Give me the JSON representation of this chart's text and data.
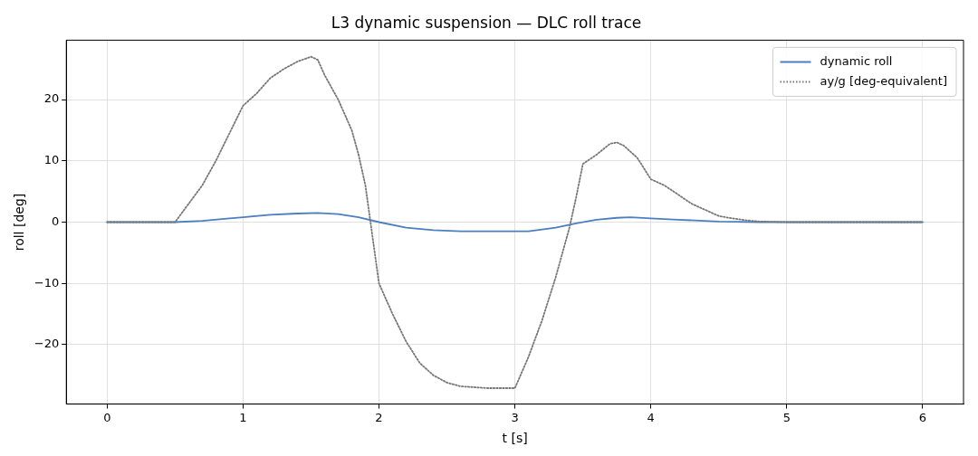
{
  "chart_data": {
    "type": "line",
    "title": "L3 dynamic suspension — DLC roll trace",
    "xlabel": "t [s]",
    "ylabel": "roll [deg]",
    "xlim": [
      -0.3,
      6.3
    ],
    "xticks": [
      0,
      1,
      2,
      3,
      4,
      5,
      6
    ],
    "ylim": [
      -29.7,
      29.7
    ],
    "yticks": [
      -20,
      -10,
      0,
      10,
      20
    ],
    "grid": true,
    "legend": "top right",
    "marker": "none",
    "series": [
      {
        "name": "dynamic roll",
        "color": "#4c7fc0",
        "line_style": "solid",
        "x": [
          0,
          0.5,
          0.7,
          0.9,
          1.0,
          1.2,
          1.4,
          1.55,
          1.7,
          1.85,
          2.0,
          2.2,
          2.4,
          2.6,
          2.8,
          3.0,
          3.1,
          3.3,
          3.45,
          3.6,
          3.75,
          3.85,
          4.0,
          4.2,
          4.5,
          4.8,
          6
        ],
        "values": [
          0,
          0,
          0.2,
          0.6,
          0.8,
          1.2,
          1.4,
          1.5,
          1.3,
          0.8,
          0,
          -0.9,
          -1.3,
          -1.5,
          -1.5,
          -1.5,
          -1.5,
          -0.9,
          -0.2,
          0.4,
          0.7,
          0.8,
          0.6,
          0.4,
          0.1,
          0,
          0
        ]
      },
      {
        "name": "ay/g [deg-equivalent]",
        "color": "#777777",
        "line_style": "dotted",
        "x": [
          0,
          0.5,
          0.6,
          0.7,
          0.8,
          0.9,
          1.0,
          1.1,
          1.2,
          1.3,
          1.4,
          1.5,
          1.55,
          1.6,
          1.7,
          1.8,
          1.85,
          1.9,
          1.95,
          2.0,
          2.1,
          2.2,
          2.3,
          2.4,
          2.5,
          2.6,
          2.8,
          3.0,
          3.1,
          3.2,
          3.3,
          3.4,
          3.45,
          3.5,
          3.6,
          3.7,
          3.75,
          3.8,
          3.9,
          4.0,
          4.1,
          4.2,
          4.3,
          4.4,
          4.5,
          4.6,
          4.7,
          4.8,
          5,
          6
        ],
        "values": [
          0,
          0,
          3,
          6,
          10,
          14.5,
          19,
          21,
          23.5,
          25,
          26.2,
          27,
          26.5,
          24,
          20,
          15,
          11,
          6,
          -2,
          -10,
          -15,
          -19.5,
          -23,
          -25,
          -26.2,
          -26.8,
          -27.1,
          -27.1,
          -22,
          -16,
          -9,
          -1,
          4,
          9.5,
          11,
          12.8,
          13,
          12.5,
          10.5,
          7,
          6,
          4.5,
          3,
          2,
          1,
          0.6,
          0.3,
          0.1,
          0,
          0
        ]
      }
    ]
  }
}
